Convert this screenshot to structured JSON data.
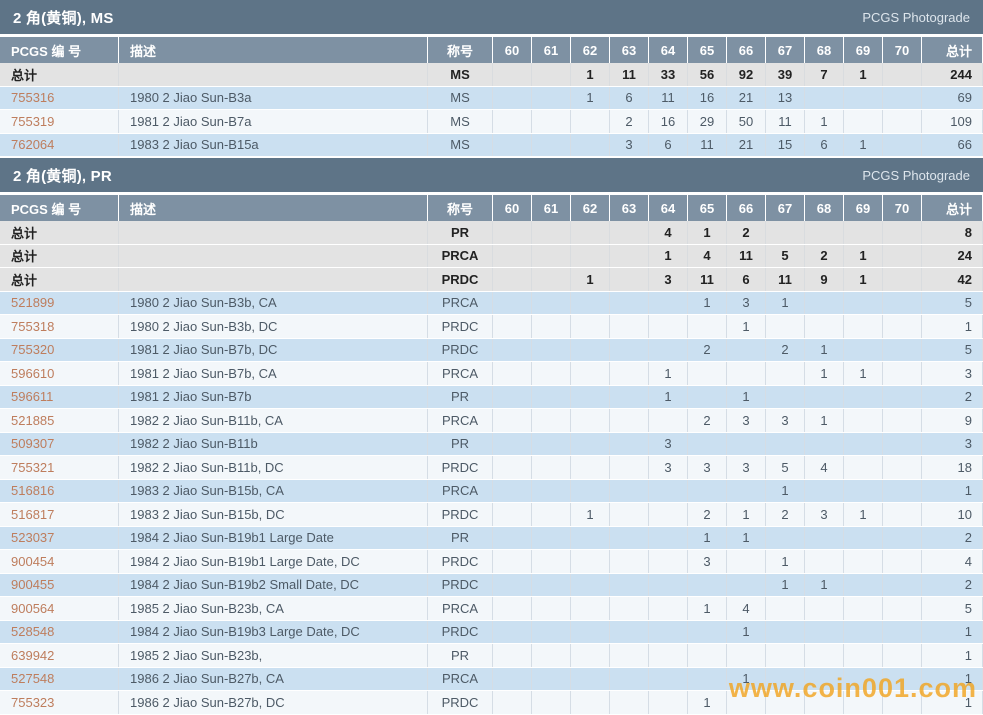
{
  "colors": {
    "title_bar": "#5E7487",
    "header_row": "#7E91A3",
    "total_row": "#E3E3E3",
    "row_blue": "#CBE0F1",
    "row_white": "#F3F7FA",
    "link": "#BE7D5D",
    "watermark": "#F2A31C"
  },
  "watermark": "www.coin001.com",
  "tables": [
    {
      "title": "2 角(黄铜), MS",
      "photograde": "PCGS Photograde",
      "headers": [
        "PCGS 编 号",
        "描述",
        "称号",
        "60",
        "61",
        "62",
        "63",
        "64",
        "65",
        "66",
        "67",
        "68",
        "69",
        "70",
        "总计"
      ],
      "rows": [
        {
          "kind": "total",
          "id": "总计",
          "desc": "",
          "grade": "MS",
          "counts": [
            "",
            "",
            "1",
            "11",
            "33",
            "56",
            "92",
            "39",
            "7",
            "1",
            ""
          ],
          "total": "244"
        },
        {
          "kind": "data",
          "id": "755316",
          "desc": "1980 2 Jiao Sun-B3a",
          "grade": "MS",
          "counts": [
            "",
            "",
            "1",
            "6",
            "11",
            "16",
            "21",
            "13",
            "",
            "",
            ""
          ],
          "total": "69"
        },
        {
          "kind": "data",
          "id": "755319",
          "desc": "1981 2 Jiao Sun-B7a",
          "grade": "MS",
          "counts": [
            "",
            "",
            "",
            "2",
            "16",
            "29",
            "50",
            "11",
            "1",
            "",
            ""
          ],
          "total": "109"
        },
        {
          "kind": "data",
          "id": "762064",
          "desc": "1983 2 Jiao Sun-B15a",
          "grade": "MS",
          "counts": [
            "",
            "",
            "",
            "3",
            "6",
            "11",
            "21",
            "15",
            "6",
            "1",
            ""
          ],
          "total": "66"
        }
      ]
    },
    {
      "title": "2 角(黄铜), PR",
      "photograde": "PCGS Photograde",
      "headers": [
        "PCGS 编 号",
        "描述",
        "称号",
        "60",
        "61",
        "62",
        "63",
        "64",
        "65",
        "66",
        "67",
        "68",
        "69",
        "70",
        "总计"
      ],
      "rows": [
        {
          "kind": "total",
          "id": "总计",
          "desc": "",
          "grade": "PR",
          "counts": [
            "",
            "",
            "",
            "",
            "4",
            "1",
            "2",
            "",
            "",
            "",
            ""
          ],
          "total": "8"
        },
        {
          "kind": "total",
          "id": "总计",
          "desc": "",
          "grade": "PRCA",
          "counts": [
            "",
            "",
            "",
            "",
            "1",
            "4",
            "11",
            "5",
            "2",
            "1",
            ""
          ],
          "total": "24"
        },
        {
          "kind": "total",
          "id": "总计",
          "desc": "",
          "grade": "PRDC",
          "counts": [
            "",
            "",
            "1",
            "",
            "3",
            "11",
            "6",
            "11",
            "9",
            "1",
            ""
          ],
          "total": "42"
        },
        {
          "kind": "data",
          "id": "521899",
          "desc": "1980 2 Jiao Sun-B3b, CA",
          "grade": "PRCA",
          "counts": [
            "",
            "",
            "",
            "",
            "",
            "1",
            "3",
            "1",
            "",
            "",
            ""
          ],
          "total": "5"
        },
        {
          "kind": "data",
          "id": "755318",
          "desc": "1980 2 Jiao Sun-B3b, DC",
          "grade": "PRDC",
          "counts": [
            "",
            "",
            "",
            "",
            "",
            "",
            "1",
            "",
            "",
            "",
            ""
          ],
          "total": "1"
        },
        {
          "kind": "data",
          "id": "755320",
          "desc": "1981 2 Jiao Sun-B7b, DC",
          "grade": "PRDC",
          "counts": [
            "",
            "",
            "",
            "",
            "",
            "2",
            "",
            "2",
            "1",
            "",
            ""
          ],
          "total": "5"
        },
        {
          "kind": "data",
          "id": "596610",
          "desc": "1981 2 Jiao Sun-B7b, CA",
          "grade": "PRCA",
          "counts": [
            "",
            "",
            "",
            "",
            "1",
            "",
            "",
            "",
            "1",
            "1",
            ""
          ],
          "total": "3"
        },
        {
          "kind": "data",
          "id": "596611",
          "desc": "1981 2 Jiao Sun-B7b",
          "grade": "PR",
          "counts": [
            "",
            "",
            "",
            "",
            "1",
            "",
            "1",
            "",
            "",
            "",
            ""
          ],
          "total": "2"
        },
        {
          "kind": "data",
          "id": "521885",
          "desc": "1982 2 Jiao Sun-B11b, CA",
          "grade": "PRCA",
          "counts": [
            "",
            "",
            "",
            "",
            "",
            "2",
            "3",
            "3",
            "1",
            "",
            ""
          ],
          "total": "9"
        },
        {
          "kind": "data",
          "id": "509307",
          "desc": "1982 2 Jiao Sun-B11b",
          "grade": "PR",
          "counts": [
            "",
            "",
            "",
            "",
            "3",
            "",
            "",
            "",
            "",
            "",
            ""
          ],
          "total": "3"
        },
        {
          "kind": "data",
          "id": "755321",
          "desc": "1982 2 Jiao Sun-B11b, DC",
          "grade": "PRDC",
          "counts": [
            "",
            "",
            "",
            "",
            "3",
            "3",
            "3",
            "5",
            "4",
            "",
            ""
          ],
          "total": "18"
        },
        {
          "kind": "data",
          "id": "516816",
          "desc": "1983 2 Jiao Sun-B15b, CA",
          "grade": "PRCA",
          "counts": [
            "",
            "",
            "",
            "",
            "",
            "",
            "",
            "1",
            "",
            "",
            ""
          ],
          "total": "1"
        },
        {
          "kind": "data",
          "id": "516817",
          "desc": "1983 2 Jiao Sun-B15b, DC",
          "grade": "PRDC",
          "counts": [
            "",
            "",
            "1",
            "",
            "",
            "2",
            "1",
            "2",
            "3",
            "1",
            ""
          ],
          "total": "10"
        },
        {
          "kind": "data",
          "id": "523037",
          "desc": "1984 2 Jiao Sun-B19b1 Large Date",
          "grade": "PR",
          "counts": [
            "",
            "",
            "",
            "",
            "",
            "1",
            "1",
            "",
            "",
            "",
            ""
          ],
          "total": "2"
        },
        {
          "kind": "data",
          "id": "900454",
          "desc": "1984 2 Jiao Sun-B19b1 Large Date, DC",
          "grade": "PRDC",
          "counts": [
            "",
            "",
            "",
            "",
            "",
            "3",
            "",
            "1",
            "",
            "",
            ""
          ],
          "total": "4"
        },
        {
          "kind": "data",
          "id": "900455",
          "desc": "1984 2 Jiao Sun-B19b2 Small Date, DC",
          "grade": "PRDC",
          "counts": [
            "",
            "",
            "",
            "",
            "",
            "",
            "",
            "1",
            "1",
            "",
            ""
          ],
          "total": "2"
        },
        {
          "kind": "data",
          "id": "900564",
          "desc": "1985 2 Jiao Sun-B23b, CA",
          "grade": "PRCA",
          "counts": [
            "",
            "",
            "",
            "",
            "",
            "1",
            "4",
            "",
            "",
            "",
            ""
          ],
          "total": "5"
        },
        {
          "kind": "data",
          "id": "528548",
          "desc": "1984 2 Jiao Sun-B19b3 Large Date, DC",
          "grade": "PRDC",
          "counts": [
            "",
            "",
            "",
            "",
            "",
            "",
            "1",
            "",
            "",
            "",
            ""
          ],
          "total": "1"
        },
        {
          "kind": "data",
          "id": "639942",
          "desc": "1985 2 Jiao Sun-B23b,",
          "grade": "PR",
          "counts": [
            "",
            "",
            "",
            "",
            "",
            "",
            "",
            "",
            "",
            "",
            ""
          ],
          "total": "1"
        },
        {
          "kind": "data",
          "id": "527548",
          "desc": "1986 2 Jiao Sun-B27b, CA",
          "grade": "PRCA",
          "counts": [
            "",
            "",
            "",
            "",
            "",
            "",
            "1",
            "",
            "",
            "",
            ""
          ],
          "total": "1"
        },
        {
          "kind": "data",
          "id": "755323",
          "desc": "1986 2 Jiao Sun-B27b, DC",
          "grade": "PRDC",
          "counts": [
            "",
            "",
            "",
            "",
            "",
            "1",
            "",
            "",
            "",
            "",
            ""
          ],
          "total": "1"
        }
      ]
    }
  ]
}
